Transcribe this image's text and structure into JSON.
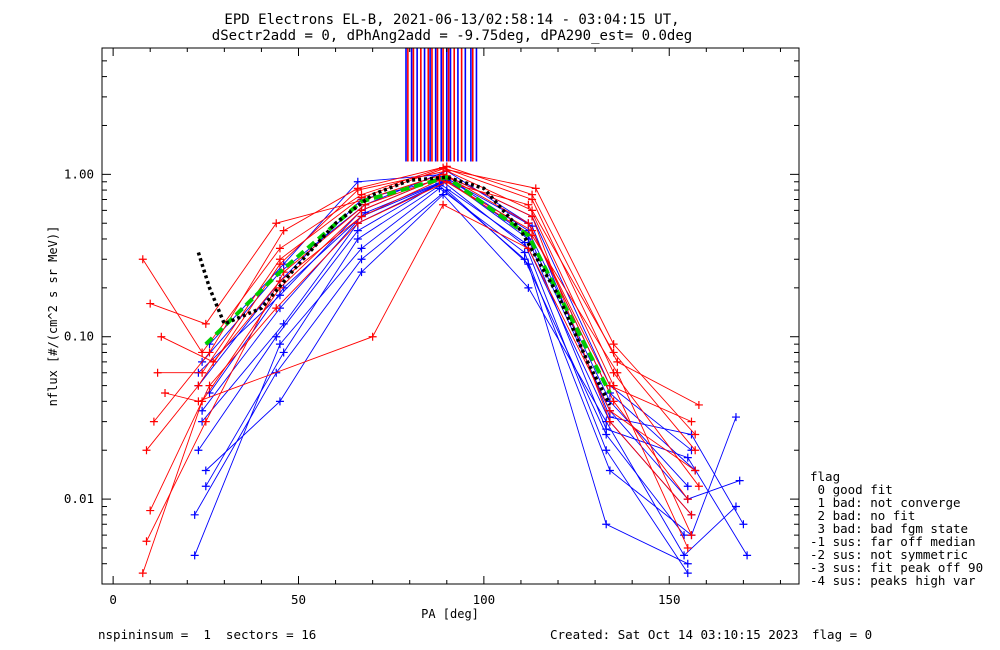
{
  "title": {
    "line1": "EPD Electrons EL-B, 2021-06-13/02:58:14 - 03:04:15 UT,",
    "line2": "dSectr2add = 0, dPhAng2add = -9.75deg, dPA290_est=   0.0deg"
  },
  "footer": {
    "left": "nspininsum =  1  sectors = 16",
    "created": "Created: Sat Oct 14 03:10:15 2023",
    "flag": "flag = 0"
  },
  "legend": {
    "title": "flag",
    "items": [
      " 0 good fit",
      " 1 bad: not converge",
      " 2 bad: no fit",
      " 3 bad: bad fgm state",
      "-1 sus: far off median",
      "-2 sus: not symmetric",
      "-3 sus: fit peak off 90",
      "-4 sus: peaks high var"
    ]
  },
  "colors": {
    "blue": "#0000ff",
    "red": "#ff0000",
    "green": "#00cc00",
    "black": "#000000"
  },
  "chart_data": {
    "type": "line",
    "xlabel": "PA [deg]",
    "ylabel": "nflux [#/(cm^2 s sr MeV)]",
    "xlim": [
      -3,
      185
    ],
    "ylim": [
      0.003,
      6.0
    ],
    "yscale": "log",
    "xticks": [
      0,
      50,
      100,
      150
    ],
    "xtick_labels": [
      "0",
      "50",
      "100",
      "150"
    ],
    "yticks": [
      0.01,
      0.1,
      1.0
    ],
    "ytick_labels": [
      "0.01",
      "0.10",
      "1.00"
    ],
    "grid": false,
    "series": [
      {
        "color": "blue",
        "points": [
          [
            23,
            0.05
          ],
          [
            45,
            0.22
          ],
          [
            67,
            0.7
          ],
          [
            90,
            0.95
          ],
          [
            112,
            0.45
          ],
          [
            134,
            0.04
          ],
          [
            155,
            0.012
          ]
        ]
      },
      {
        "color": "blue",
        "points": [
          [
            24,
            0.035
          ],
          [
            45,
            0.15
          ],
          [
            67,
            0.55
          ],
          [
            89,
            0.9
          ],
          [
            112,
            0.35
          ],
          [
            134,
            0.03
          ],
          [
            156,
            0.008
          ]
        ]
      },
      {
        "color": "blue",
        "points": [
          [
            25,
            0.012
          ],
          [
            46,
            0.08
          ],
          [
            66,
            0.4
          ],
          [
            88,
            0.85
          ],
          [
            111,
            0.3
          ],
          [
            133,
            0.025
          ],
          [
            154,
            0.006
          ]
        ]
      },
      {
        "color": "blue",
        "points": [
          [
            22,
            0.008
          ],
          [
            44,
            0.06
          ],
          [
            67,
            0.3
          ],
          [
            90,
            0.8
          ],
          [
            112,
            0.28
          ],
          [
            133,
            0.007
          ],
          [
            155,
            0.004
          ]
        ]
      },
      {
        "color": "blue",
        "points": [
          [
            26,
            0.09
          ],
          [
            46,
            0.28
          ],
          [
            66,
            0.9
          ],
          [
            89,
            1.0
          ],
          [
            113,
            0.55
          ],
          [
            134,
            0.05
          ],
          [
            156,
            0.02
          ]
        ]
      },
      {
        "color": "blue",
        "points": [
          [
            24,
            0.07
          ],
          [
            45,
            0.25
          ],
          [
            68,
            0.65
          ],
          [
            90,
            1.05
          ],
          [
            112,
            0.5
          ],
          [
            134,
            0.045
          ],
          [
            157,
            0.015
          ]
        ]
      },
      {
        "color": "blue",
        "points": [
          [
            23,
            0.02
          ],
          [
            44,
            0.1
          ],
          [
            66,
            0.45
          ],
          [
            88,
            0.88
          ],
          [
            111,
            0.38
          ],
          [
            133,
            0.02
          ],
          [
            155,
            0.0035
          ]
        ]
      },
      {
        "color": "blue",
        "points": [
          [
            25,
            0.015
          ],
          [
            45,
            0.04
          ],
          [
            67,
            0.25
          ],
          [
            89,
            0.75
          ],
          [
            112,
            0.2
          ],
          [
            133,
            0.03
          ],
          [
            154,
            0.0045
          ],
          [
            168,
            0.009
          ]
        ]
      },
      {
        "color": "blue",
        "points": [
          [
            24,
            0.03
          ],
          [
            46,
            0.12
          ],
          [
            66,
            0.5
          ],
          [
            90,
            0.92
          ],
          [
            112,
            0.42
          ],
          [
            134,
            0.035
          ],
          [
            155,
            0.01
          ],
          [
            169,
            0.013
          ]
        ]
      },
      {
        "color": "blue",
        "points": [
          [
            23,
            0.06
          ],
          [
            45,
            0.18
          ],
          [
            67,
            0.6
          ],
          [
            89,
            0.97
          ],
          [
            113,
            0.48
          ],
          [
            134,
            0.032
          ],
          [
            156,
            0.025
          ],
          [
            170,
            0.007
          ]
        ]
      },
      {
        "color": "blue",
        "points": [
          [
            26,
            0.045
          ],
          [
            46,
            0.2
          ],
          [
            68,
            0.58
          ],
          [
            90,
            0.93
          ],
          [
            112,
            0.4
          ],
          [
            133,
            0.027
          ],
          [
            155,
            0.018
          ],
          [
            171,
            0.0045
          ]
        ]
      },
      {
        "color": "blue",
        "points": [
          [
            22,
            0.0045
          ],
          [
            45,
            0.09
          ],
          [
            67,
            0.35
          ],
          [
            88,
            0.82
          ],
          [
            111,
            0.33
          ],
          [
            134,
            0.015
          ],
          [
            156,
            0.006
          ],
          [
            168,
            0.032
          ]
        ]
      },
      {
        "color": "red",
        "points": [
          [
            8,
            0.3
          ],
          [
            24,
            0.08
          ],
          [
            45,
            0.35
          ],
          [
            67,
            0.75
          ],
          [
            89,
            1.1
          ],
          [
            113,
            0.7
          ],
          [
            135,
            0.06
          ],
          [
            158,
            0.012
          ]
        ]
      },
      {
        "color": "red",
        "points": [
          [
            9,
            0.02
          ],
          [
            23,
            0.05
          ],
          [
            45,
            0.28
          ],
          [
            66,
            0.8
          ],
          [
            90,
            1.05
          ],
          [
            113,
            0.6
          ],
          [
            135,
            0.08
          ],
          [
            157,
            0.02
          ]
        ]
      },
      {
        "color": "red",
        "points": [
          [
            10,
            0.16
          ],
          [
            25,
            0.12
          ],
          [
            44,
            0.5
          ],
          [
            68,
            0.7
          ],
          [
            89,
            1.0
          ],
          [
            112,
            0.5
          ],
          [
            134,
            0.05
          ],
          [
            156,
            0.03
          ]
        ]
      },
      {
        "color": "red",
        "points": [
          [
            8,
            0.0035
          ],
          [
            24,
            0.04
          ],
          [
            45,
            0.2
          ],
          [
            67,
            0.6
          ],
          [
            88,
            0.95
          ],
          [
            113,
            0.45
          ],
          [
            135,
            0.04
          ],
          [
            155,
            0.01
          ]
        ]
      },
      {
        "color": "red",
        "points": [
          [
            11,
            0.03
          ],
          [
            26,
            0.08
          ],
          [
            46,
            0.45
          ],
          [
            66,
            0.82
          ],
          [
            90,
            1.12
          ],
          [
            113,
            0.75
          ],
          [
            136,
            0.07
          ],
          [
            158,
            0.038
          ]
        ]
      },
      {
        "color": "red",
        "points": [
          [
            12,
            0.06
          ],
          [
            24,
            0.06
          ],
          [
            45,
            0.3
          ],
          [
            67,
            0.72
          ],
          [
            89,
            1.08
          ],
          [
            114,
            0.82
          ],
          [
            135,
            0.09
          ],
          [
            157,
            0.025
          ]
        ]
      },
      {
        "color": "red",
        "points": [
          [
            9,
            0.0055
          ],
          [
            25,
            0.03
          ],
          [
            46,
            0.25
          ],
          [
            68,
            0.65
          ],
          [
            90,
            0.98
          ],
          [
            113,
            0.55
          ],
          [
            134,
            0.03
          ],
          [
            156,
            0.008
          ]
        ]
      },
      {
        "color": "red",
        "points": [
          [
            13,
            0.1
          ],
          [
            27,
            0.07
          ],
          [
            45,
            0.22
          ],
          [
            67,
            0.55
          ],
          [
            88,
            0.92
          ],
          [
            112,
            0.65
          ],
          [
            135,
            0.05
          ],
          [
            155,
            0.005
          ]
        ]
      },
      {
        "color": "red",
        "points": [
          [
            14,
            0.045
          ],
          [
            23,
            0.04
          ],
          [
            70,
            0.1
          ],
          [
            89,
            0.65
          ],
          [
            112,
            0.35
          ],
          [
            134,
            0.035
          ],
          [
            157,
            0.015
          ]
        ]
      },
      {
        "color": "red",
        "points": [
          [
            10,
            0.0085
          ],
          [
            26,
            0.05
          ],
          [
            44,
            0.15
          ],
          [
            66,
            0.5
          ],
          [
            90,
            0.9
          ],
          [
            113,
            0.42
          ],
          [
            136,
            0.06
          ],
          [
            156,
            0.006
          ]
        ]
      }
    ],
    "median_fit": {
      "color": "green",
      "style": "dashed",
      "points": [
        [
          25,
          0.09
        ],
        [
          45,
          0.25
        ],
        [
          67,
          0.68
        ],
        [
          90,
          0.96
        ],
        [
          112,
          0.42
        ],
        [
          134,
          0.045
        ]
      ]
    },
    "model_fit": {
      "color": "black",
      "style": "dotted",
      "points": [
        [
          23,
          0.33
        ],
        [
          26,
          0.2
        ],
        [
          30,
          0.12
        ],
        [
          40,
          0.15
        ],
        [
          50,
          0.28
        ],
        [
          60,
          0.5
        ],
        [
          70,
          0.75
        ],
        [
          80,
          0.92
        ],
        [
          90,
          0.96
        ],
        [
          100,
          0.82
        ],
        [
          110,
          0.45
        ],
        [
          120,
          0.18
        ],
        [
          128,
          0.07
        ],
        [
          134,
          0.038
        ]
      ]
    },
    "lc_lines": [
      {
        "color": "blue",
        "x": [
          79,
          80.5,
          82,
          84,
          85.5,
          87,
          88.5,
          90,
          91,
          93,
          95,
          96.5,
          98
        ]
      },
      {
        "color": "red",
        "x": [
          79.5,
          81,
          83,
          85,
          86,
          87.5,
          89,
          90.5,
          92,
          94,
          97
        ]
      }
    ]
  }
}
